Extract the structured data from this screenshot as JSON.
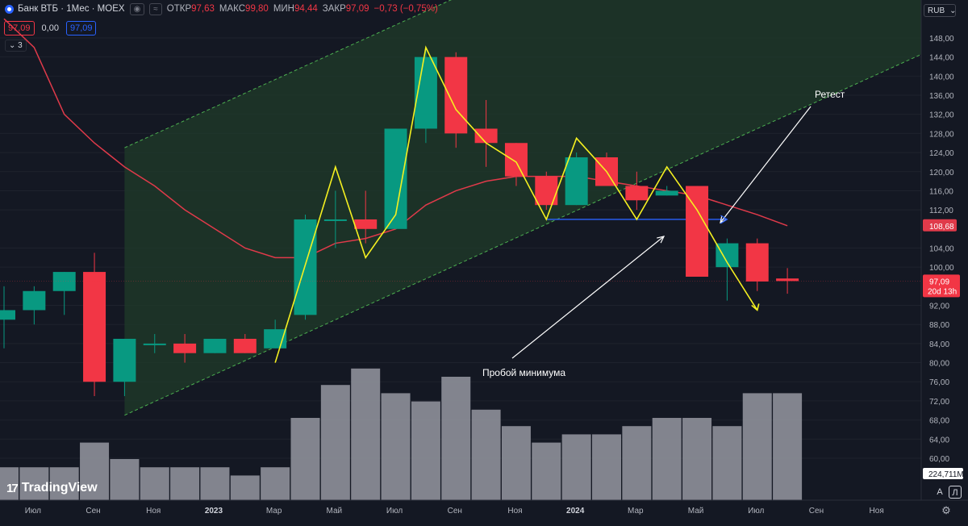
{
  "header": {
    "symbol": "Банк ВТБ · 1Мес · MOEX",
    "open_key": "ОТКР",
    "open_val": "97,63",
    "high_key": "МАКС",
    "high_val": "99,80",
    "low_key": "МИН",
    "low_val": "94,44",
    "close_key": "ЗАКР",
    "close_val": "97,09",
    "change": "−0,73 (−0,75%)",
    "sell_price": "97,09",
    "spread": "0,00",
    "buy_price": "97,09",
    "indicators_count": "3",
    "currency": "RUB"
  },
  "colors": {
    "up": "#089981",
    "down": "#f23645",
    "channel": "#1f3b2a",
    "ma": "#e03a4a",
    "pattern": "#f5f020",
    "support": "#2962ff",
    "volume": "#9598a1",
    "background": "#141823"
  },
  "chart_data": {
    "type": "candlestick",
    "title": "Банк ВТБ · 1Мес · MOEX",
    "y_ticks": [
      "148,00",
      "144,00",
      "140,00",
      "136,00",
      "132,00",
      "128,00",
      "124,00",
      "120,00",
      "116,00",
      "112,00",
      "104,00",
      "100,00",
      "92,00",
      "88,00",
      "84,00",
      "80,00",
      "76,00",
      "72,00",
      "68,00",
      "64,00",
      "60,00"
    ],
    "ylim": [
      53,
      152
    ],
    "x_labels": [
      "Июл",
      "Сен",
      "Ноя",
      "2023",
      "Мар",
      "Май",
      "Июл",
      "Сен",
      "Ноя",
      "2024",
      "Мар",
      "Май",
      "Июл",
      "Сен",
      "Ноя"
    ],
    "candles": [
      {
        "date": "2022-06",
        "o": 89,
        "h": 96,
        "l": 83,
        "c": 91
      },
      {
        "date": "2022-07",
        "o": 91,
        "h": 96,
        "l": 88,
        "c": 95
      },
      {
        "date": "2022-08",
        "o": 95,
        "h": 99,
        "l": 90,
        "c": 99
      },
      {
        "date": "2022-09",
        "o": 99,
        "h": 103,
        "l": 73,
        "c": 76
      },
      {
        "date": "2022-10",
        "o": 76,
        "h": 85,
        "l": 73,
        "c": 85
      },
      {
        "date": "2022-11",
        "o": 84,
        "h": 86,
        "l": 82,
        "c": 84
      },
      {
        "date": "2022-12",
        "o": 84,
        "h": 86,
        "l": 80,
        "c": 82
      },
      {
        "date": "2023-01",
        "o": 82,
        "h": 85,
        "l": 82,
        "c": 85
      },
      {
        "date": "2023-02",
        "o": 85,
        "h": 86,
        "l": 82,
        "c": 82
      },
      {
        "date": "2023-03",
        "o": 83,
        "h": 89,
        "l": 83,
        "c": 87
      },
      {
        "date": "2023-04",
        "o": 90,
        "h": 111,
        "l": 89,
        "c": 110
      },
      {
        "date": "2023-05",
        "o": 110,
        "h": 116,
        "l": 104,
        "c": 110
      },
      {
        "date": "2023-06",
        "o": 110,
        "h": 116,
        "l": 105,
        "c": 108
      },
      {
        "date": "2023-07",
        "o": 108,
        "h": 129,
        "l": 108,
        "c": 129
      },
      {
        "date": "2023-08",
        "o": 129,
        "h": 146,
        "l": 126,
        "c": 144
      },
      {
        "date": "2023-09",
        "o": 144,
        "h": 145,
        "l": 125,
        "c": 128
      },
      {
        "date": "2023-10",
        "o": 129,
        "h": 135,
        "l": 121,
        "c": 126
      },
      {
        "date": "2023-11",
        "o": 126,
        "h": 126,
        "l": 117,
        "c": 119
      },
      {
        "date": "2023-12",
        "o": 119,
        "h": 120,
        "l": 112,
        "c": 113
      },
      {
        "date": "2024-01",
        "o": 113,
        "h": 124,
        "l": 113,
        "c": 123
      },
      {
        "date": "2024-02",
        "o": 123,
        "h": 124,
        "l": 117,
        "c": 117
      },
      {
        "date": "2024-03",
        "o": 117,
        "h": 120,
        "l": 112,
        "c": 114
      },
      {
        "date": "2024-04",
        "o": 115,
        "h": 117,
        "l": 115,
        "c": 116
      },
      {
        "date": "2024-05",
        "o": 117,
        "h": 117,
        "l": 98,
        "c": 98
      },
      {
        "date": "2024-06",
        "o": 100,
        "h": 106,
        "l": 93,
        "c": 105
      },
      {
        "date": "2024-07",
        "o": 105,
        "h": 106,
        "l": 95,
        "c": 97
      },
      {
        "date": "2024-08",
        "o": 97.63,
        "h": 99.8,
        "l": 94.44,
        "c": 97.09
      }
    ],
    "volume_label": "224,711M",
    "moving_average": {
      "label": "108,68",
      "value": 108.68
    },
    "last_price": {
      "label": "97,09",
      "countdown": "20d 13h"
    },
    "annotations": [
      {
        "text": "Ретест"
      },
      {
        "text": "Пробой минимума"
      }
    ],
    "support_level": 110,
    "pattern_points": [
      {
        "date": "2023-03",
        "v": 80
      },
      {
        "date": "2023-05",
        "v": 121
      },
      {
        "date": "2023-06",
        "v": 102
      },
      {
        "date": "2023-07",
        "v": 111
      },
      {
        "date": "2023-08",
        "v": 146
      },
      {
        "date": "2023-09",
        "v": 133
      },
      {
        "date": "2023-10",
        "v": 126
      },
      {
        "date": "2023-11",
        "v": 122
      },
      {
        "date": "2023-12",
        "v": 110
      },
      {
        "date": "2024-01",
        "v": 127
      },
      {
        "date": "2024-02",
        "v": 120
      },
      {
        "date": "2024-03",
        "v": 110
      },
      {
        "date": "2024-04",
        "v": 121
      },
      {
        "date": "2024-05",
        "v": 112
      },
      {
        "date": "2024-06",
        "v": 101
      },
      {
        "date": "2024-07",
        "v": 91
      }
    ]
  },
  "branding": {
    "logo": "TradingView"
  },
  "scale_buttons": {
    "auto": "A",
    "log": "Л"
  }
}
